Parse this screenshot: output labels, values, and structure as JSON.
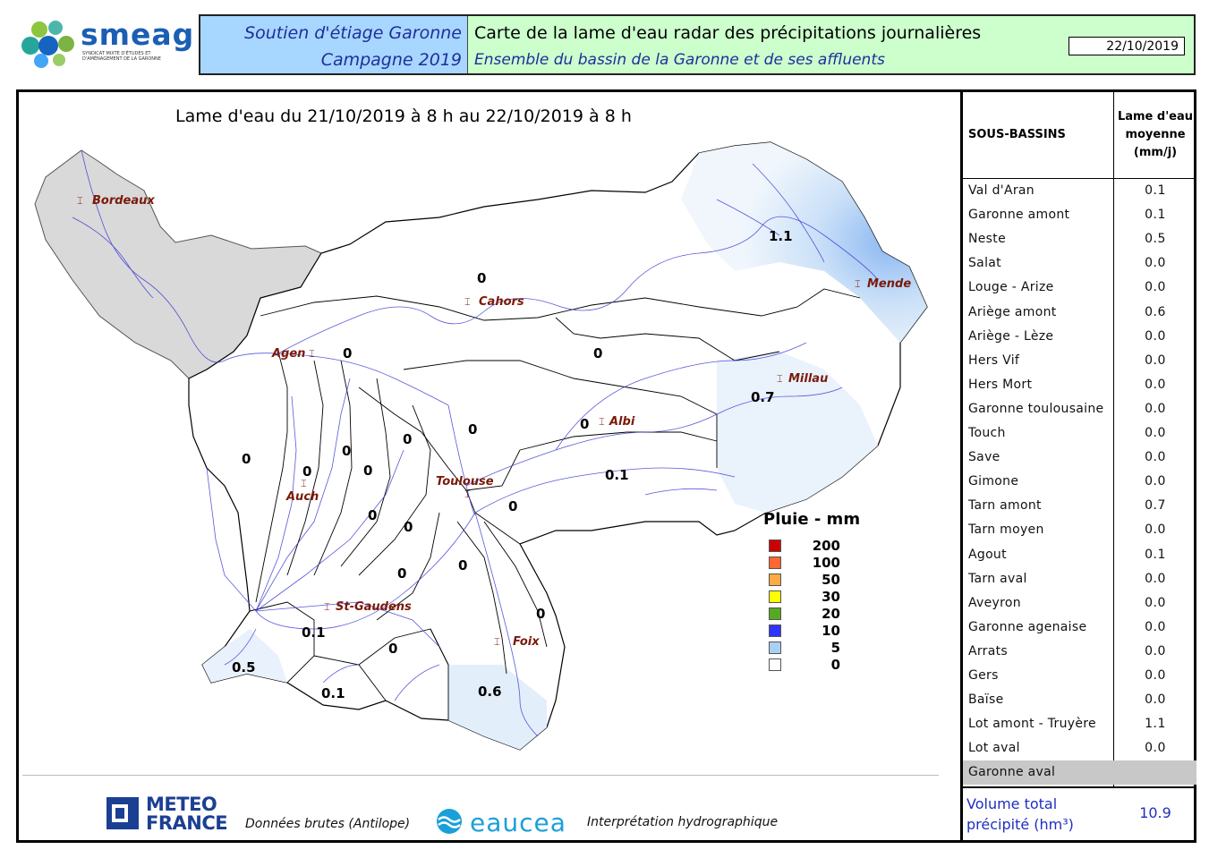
{
  "header": {
    "logo_text": "smeag",
    "logo_sub": "SYNDICAT MIXTE D'ÉTUDES ET D'AMÉNAGEMENT DE LA GARONNE",
    "left_line1": "Soutien d'étiage Garonne",
    "left_line2": "Campagne 2019",
    "title": "Carte de la lame d'eau radar des précipitations journalières",
    "subtitle": "Ensemble du bassin de la Garonne et de ses affluents",
    "date": "22/10/2019"
  },
  "map": {
    "title": "Lame d'eau du 21/10/2019 à 8 h au 22/10/2019 à 8 h",
    "cities": [
      "Bordeaux",
      "Cahors",
      "Mende",
      "Agen",
      "Millau",
      "Albi",
      "Toulouse",
      "Auch",
      "St-Gaudens",
      "Foix"
    ],
    "basin_values": [
      "1.1",
      "0",
      "0",
      "0.7",
      "0",
      "0",
      "0",
      "0",
      "0",
      "0",
      "0",
      "0.1",
      "0",
      "0",
      "0",
      "0",
      "0",
      "0",
      "0",
      "0",
      "0.1",
      "0",
      "0.5",
      "0.1",
      "0.6"
    ]
  },
  "legend": {
    "title": "Pluie - mm",
    "items": [
      {
        "label": "200",
        "color": "#cc0000"
      },
      {
        "label": "100",
        "color": "#ff6633"
      },
      {
        "label": "50",
        "color": "#ffaa44"
      },
      {
        "label": "30",
        "color": "#ffff00"
      },
      {
        "label": "20",
        "color": "#55aa22"
      },
      {
        "label": "10",
        "color": "#3333ff"
      },
      {
        "label": "5",
        "color": "#a8d0f5"
      },
      {
        "label": "0",
        "color": "#ffffff"
      }
    ]
  },
  "table": {
    "col1_header": "SOUS-BASSINS",
    "col2_header": "Lame d'eau moyenne (mm/j)",
    "rows": [
      {
        "name": "Val d'Aran",
        "value": "0.1"
      },
      {
        "name": "Garonne amont",
        "value": "0.1"
      },
      {
        "name": "Neste",
        "value": "0.5"
      },
      {
        "name": "Salat",
        "value": "0.0"
      },
      {
        "name": "Louge - Arize",
        "value": "0.0"
      },
      {
        "name": "Ariège amont",
        "value": "0.6"
      },
      {
        "name": "Ariège - Lèze",
        "value": "0.0"
      },
      {
        "name": "Hers Vif",
        "value": "0.0"
      },
      {
        "name": "Hers Mort",
        "value": "0.0"
      },
      {
        "name": "Garonne toulousaine",
        "value": "0.0"
      },
      {
        "name": "Touch",
        "value": "0.0"
      },
      {
        "name": "Save",
        "value": "0.0"
      },
      {
        "name": "Gimone",
        "value": "0.0"
      },
      {
        "name": "Tarn amont",
        "value": "0.7"
      },
      {
        "name": "Tarn moyen",
        "value": "0.0"
      },
      {
        "name": "Agout",
        "value": "0.1"
      },
      {
        "name": "Tarn aval",
        "value": "0.0"
      },
      {
        "name": "Aveyron",
        "value": "0.0"
      },
      {
        "name": "Garonne agenaise",
        "value": "0.0"
      },
      {
        "name": "Arrats",
        "value": "0.0"
      },
      {
        "name": "Gers",
        "value": "0.0"
      },
      {
        "name": "Baïse",
        "value": "0.0"
      },
      {
        "name": "Lot amont - Truyère",
        "value": "1.1"
      },
      {
        "name": "Lot aval",
        "value": "0.0"
      },
      {
        "name": "Garonne aval",
        "value": ""
      }
    ],
    "volume_label": "Volume total précipité (hm³)",
    "volume_value": "10.9"
  },
  "footer": {
    "meteo_line1": "METEO",
    "meteo_line2": "FRANCE",
    "credit_raw": "Données brutes (Antilope)",
    "eaucea": "eaucea",
    "credit_interp": "Interprétation hydrographique"
  }
}
